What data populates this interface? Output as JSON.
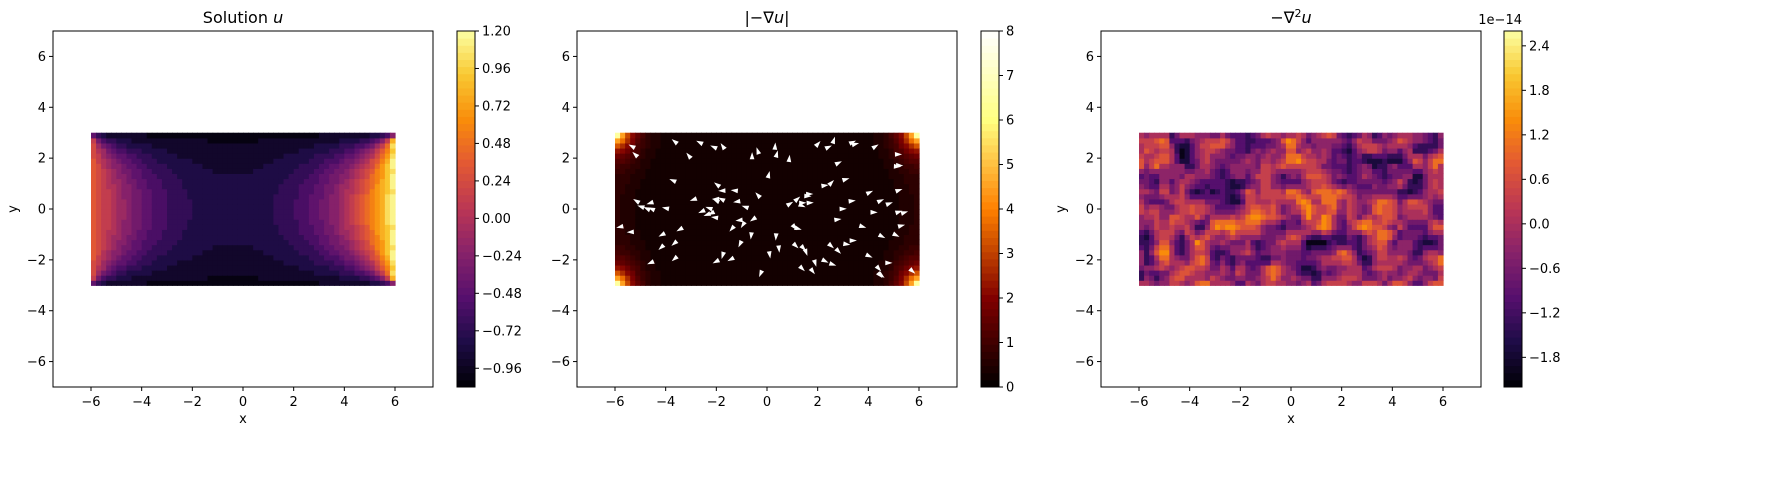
{
  "figure": {
    "layout": "1x3 subplots with colorbars"
  },
  "chart_data": [
    {
      "type": "heatmap",
      "subtype": "filled-contour",
      "title": "Solution u",
      "title_parts": [
        "Solution ",
        "u"
      ],
      "xlabel": "x",
      "ylabel": "y",
      "xlim": [
        -7.5,
        7.5
      ],
      "ylim": [
        -7,
        7
      ],
      "xticks": [
        -6,
        -4,
        -2,
        0,
        2,
        4,
        6
      ],
      "yticks": [
        -6,
        -4,
        -2,
        0,
        2,
        4,
        6
      ],
      "domain": {
        "x": [
          -6,
          6
        ],
        "y": [
          -3,
          3
        ]
      },
      "colormap": "inferno",
      "colorbar": {
        "range": [
          -1.08,
          1.2
        ],
        "ticks": [
          "−0.96",
          "−0.72",
          "−0.48",
          "−0.24",
          "0.00",
          "0.24",
          "0.48",
          "0.72",
          "0.96",
          "1.20"
        ],
        "tick_values": [
          -0.96,
          -0.72,
          -0.48,
          -0.24,
          0.0,
          0.24,
          0.48,
          0.72,
          0.96,
          1.2
        ],
        "offset_text": ""
      },
      "field": "harmonic: boundary u=-1 at y=±3, u≈0.4 at x=-6, u≈1.2 at x=6"
    },
    {
      "type": "heatmap",
      "subtype": "filled-contour-with-quiver",
      "title": "|−∇u|",
      "title_parts": [
        "|−∇",
        "u",
        "|"
      ],
      "xlabel": "",
      "ylabel": "",
      "xlim": [
        -7.5,
        7.5
      ],
      "ylim": [
        -7,
        7
      ],
      "xticks": [
        -6,
        -4,
        -2,
        0,
        2,
        4,
        6
      ],
      "yticks": [
        -6,
        -4,
        -2,
        0,
        2,
        4,
        6
      ],
      "domain": {
        "x": [
          -6,
          6
        ],
        "y": [
          -3,
          3
        ]
      },
      "colormap": "afmhot",
      "colorbar": {
        "range": [
          0,
          8
        ],
        "ticks": [
          "0",
          "1",
          "2",
          "3",
          "4",
          "5",
          "6",
          "7",
          "8"
        ],
        "tick_values": [
          0,
          1,
          2,
          3,
          4,
          5,
          6,
          7,
          8
        ],
        "offset_text": ""
      },
      "field": "gradient magnitude, near 0 in interior, large at domain corners; white arrowheads show -grad u direction"
    },
    {
      "type": "heatmap",
      "subtype": "filled-contour",
      "title": "−∇²u",
      "title_parts": [
        "−∇",
        "2",
        "u"
      ],
      "xlabel": "x",
      "ylabel": "y",
      "xlim": [
        -7.5,
        7.5
      ],
      "ylim": [
        -7,
        7
      ],
      "xticks": [
        -6,
        -4,
        -2,
        0,
        2,
        4,
        6
      ],
      "yticks": [
        -6,
        -4,
        -2,
        0,
        2,
        4,
        6
      ],
      "domain": {
        "x": [
          -6,
          6
        ],
        "y": [
          -3,
          3
        ]
      },
      "colormap": "inferno",
      "colorbar": {
        "range": [
          -2.2,
          2.6
        ],
        "ticks": [
          "−1.8",
          "−1.2",
          "−0.6",
          "0.0",
          "0.6",
          "1.2",
          "1.8",
          "2.4"
        ],
        "tick_values": [
          -1.8,
          -1.2,
          -0.6,
          0.0,
          0.6,
          1.2,
          1.8,
          2.4
        ],
        "offset_text": "1e−14"
      },
      "field": "numerical noise around 0 (order 1e-14)"
    }
  ]
}
